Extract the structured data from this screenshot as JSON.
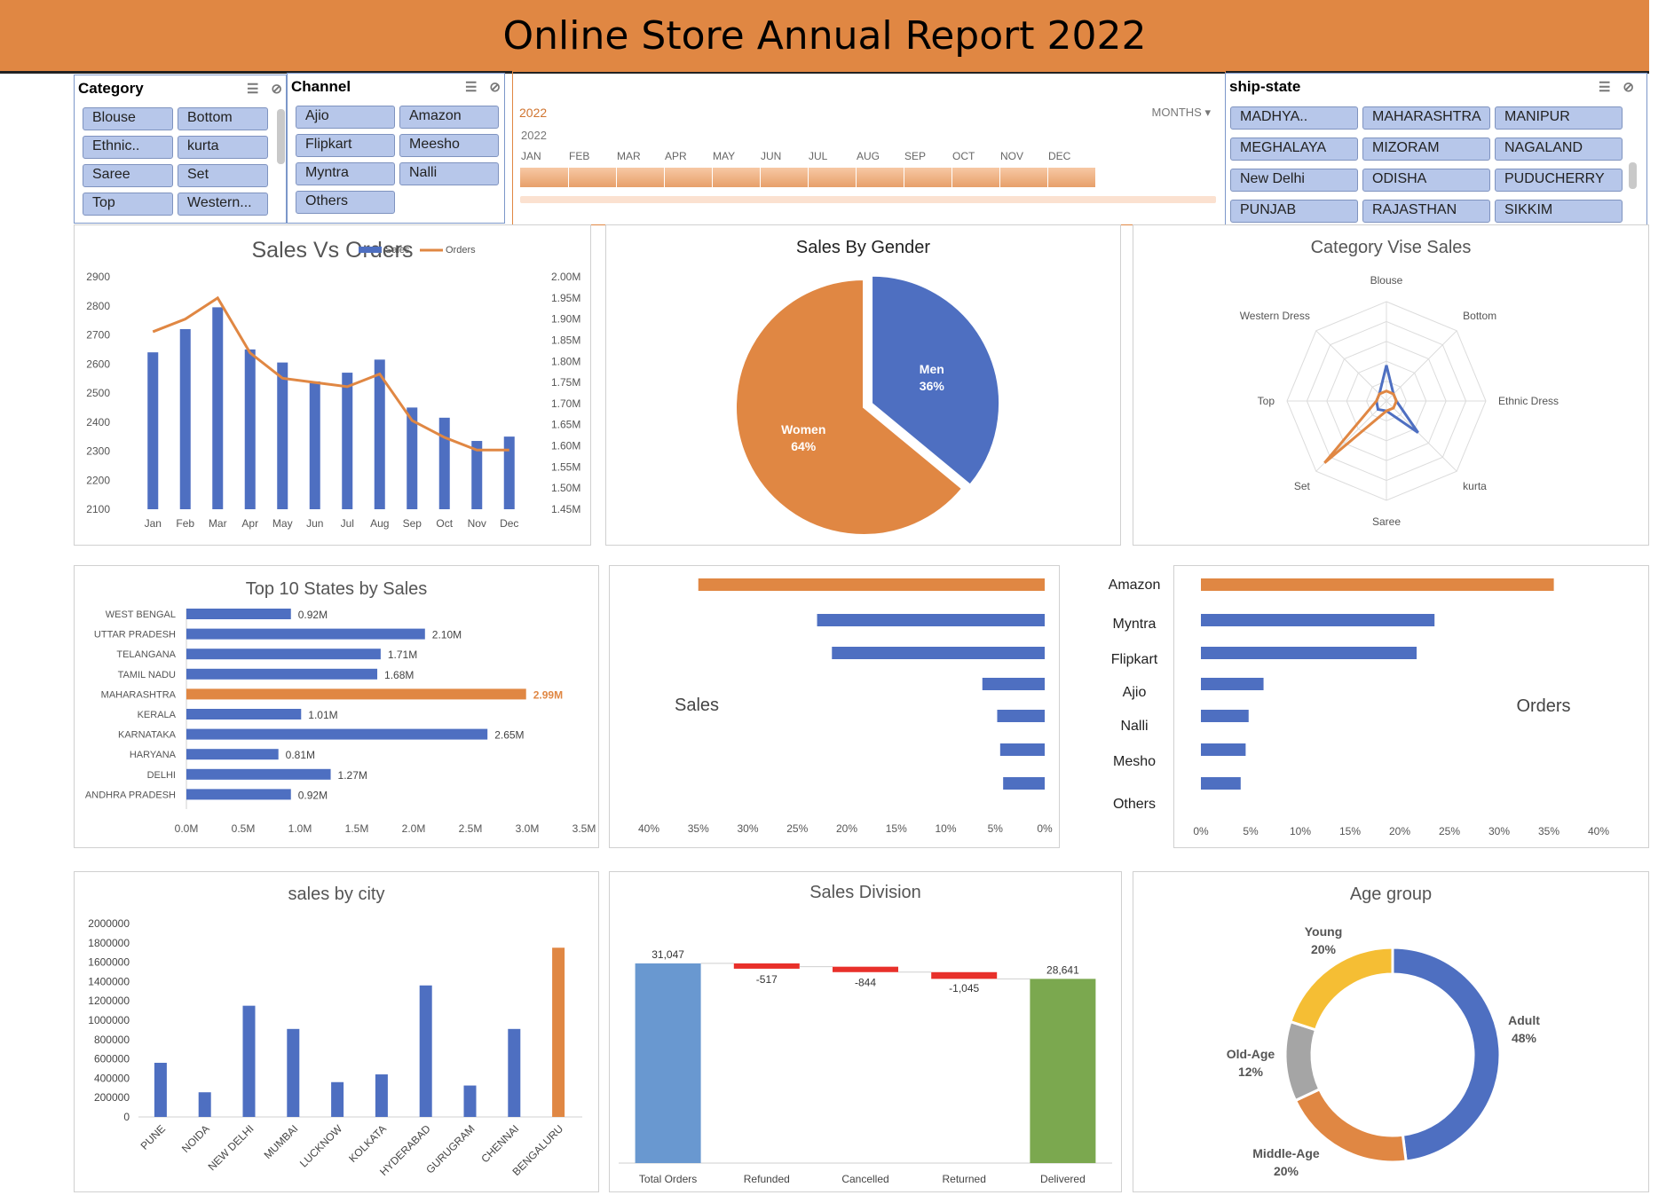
{
  "title": "Online Store Annual Report 2022",
  "slicers": {
    "category": {
      "label": "Category",
      "items": [
        "Blouse",
        "Bottom",
        "Ethnic..",
        "kurta",
        "Saree",
        "Set",
        "Top",
        "Western..."
      ]
    },
    "channel": {
      "label": "Channel",
      "items": [
        "Ajio",
        "Amazon",
        "Flipkart",
        "Meesho",
        "Myntra",
        "Nalli",
        "Others"
      ]
    },
    "ship_state": {
      "label": "ship-state",
      "items": [
        "MADHYA..",
        "MAHARASHTRA",
        "MANIPUR",
        "MEGHALAYA",
        "MIZORAM",
        "NAGALAND",
        "New Delhi",
        "ODISHA",
        "PUDUCHERRY",
        "PUNJAB",
        "RAJASTHAN",
        "SIKKIM"
      ]
    }
  },
  "timeline": {
    "period_label": "2022",
    "year": "2022",
    "level": "MONTHS",
    "months": [
      "JAN",
      "FEB",
      "MAR",
      "APR",
      "MAY",
      "JUN",
      "JUL",
      "AUG",
      "SEP",
      "OCT",
      "NOV",
      "DEC"
    ],
    "selected_fraction": 0.79
  },
  "colors": {
    "blue": "#4e6fc1",
    "orange": "#e08743",
    "gray": "#a5a5a5",
    "yellow": "#f5be34",
    "red": "#e8302a",
    "green": "#7ba84f",
    "lightblue": "#6998d0"
  },
  "chart_data": [
    {
      "id": "sales-vs-orders",
      "type": "bar",
      "title": "Sales Vs Orders",
      "categories": [
        "Jan",
        "Feb",
        "Mar",
        "Apr",
        "May",
        "Jun",
        "Jul",
        "Aug",
        "Sep",
        "Oct",
        "Nov",
        "Dec"
      ],
      "series": [
        {
          "name": "Sales",
          "type": "bar",
          "axis": "left",
          "values": [
            2640,
            2720,
            2795,
            2650,
            2605,
            2540,
            2570,
            2615,
            2450,
            2415,
            2335,
            2350
          ]
        },
        {
          "name": "Orders",
          "type": "line",
          "axis": "right",
          "values": [
            1.87,
            1.9,
            1.95,
            1.82,
            1.76,
            1.75,
            1.74,
            1.77,
            1.66,
            1.62,
            1.59,
            1.59
          ]
        }
      ],
      "ylim": [
        2100,
        2900
      ],
      "y_ticks": [
        "2900",
        "2800",
        "2700",
        "2600",
        "2500",
        "2400",
        "2300",
        "2200",
        "2100"
      ],
      "y2lim": [
        1.45,
        2.0
      ],
      "y2_ticks": [
        "2.00M",
        "1.95M",
        "1.90M",
        "1.85M",
        "1.80M",
        "1.75M",
        "1.70M",
        "1.65M",
        "1.60M",
        "1.55M",
        "1.50M",
        "1.45M"
      ],
      "legend": "top-right"
    },
    {
      "id": "sales-by-gender",
      "type": "pie",
      "title": "Sales By Gender",
      "slices": [
        {
          "label": "Men",
          "pct_label": "36%",
          "value": 36
        },
        {
          "label": "Women",
          "pct_label": "64%",
          "value": 64
        }
      ]
    },
    {
      "id": "category-vise-sales",
      "type": "radar",
      "title": "Category Vise Sales",
      "axes": [
        "Blouse",
        "Bottom",
        "Ethnic Dress",
        "kurta",
        "Saree",
        "Set",
        "Top",
        "Western Dress"
      ],
      "series": [
        {
          "values": [
            0.36,
            0.1,
            0.1,
            0.45,
            0.1,
            0.12,
            0.1,
            0.1
          ]
        },
        {
          "values": [
            0.1,
            0.1,
            0.1,
            0.1,
            0.1,
            0.88,
            0.1,
            0.1
          ]
        }
      ]
    },
    {
      "id": "top-10-states",
      "type": "bar",
      "orientation": "horizontal",
      "title": "Top 10 States by Sales",
      "categories": [
        "WEST BENGAL",
        "UTTAR PRADESH",
        "TELANGANA",
        "TAMIL NADU",
        "MAHARASHTRA",
        "KERALA",
        "KARNATAKA",
        "HARYANA",
        "DELHI",
        "ANDHRA PRADESH"
      ],
      "values": [
        0.92,
        2.1,
        1.71,
        1.68,
        2.99,
        1.01,
        2.65,
        0.81,
        1.27,
        0.92
      ],
      "value_labels": [
        "0.92M",
        "2.10M",
        "1.71M",
        "1.68M",
        "2.99M",
        "1.01M",
        "2.65M",
        "0.81M",
        "1.27M",
        "0.92M"
      ],
      "highlight": "MAHARASHTRA",
      "xlim": [
        0,
        3.5
      ],
      "x_ticks": [
        "0.0M",
        "0.5M",
        "1.0M",
        "1.5M",
        "2.0M",
        "2.5M",
        "3.0M",
        "3.5M"
      ]
    },
    {
      "id": "channel-sales-orders",
      "type": "bar",
      "orientation": "horizontal",
      "categories": [
        "Amazon",
        "Myntra",
        "Flipkart",
        "Ajio",
        "Nalli",
        "Mesho",
        "Others"
      ],
      "series": [
        {
          "name": "Sales",
          "values": [
            35,
            23,
            21.5,
            6.3,
            4.8,
            4.5,
            4.2
          ]
        },
        {
          "name": "Orders",
          "values": [
            35.5,
            23.5,
            21.7,
            6.3,
            4.8,
            4.5,
            4.0
          ]
        }
      ],
      "xlim": [
        0,
        40
      ],
      "x_ticks": [
        "0%",
        "5%",
        "10%",
        "15%",
        "20%",
        "25%",
        "30%",
        "35%",
        "40%"
      ],
      "left_x_ticks": [
        "40%",
        "35%",
        "30%",
        "25%",
        "20%",
        "15%",
        "10%",
        "5%",
        "0%"
      ]
    },
    {
      "id": "sales-by-city",
      "type": "bar",
      "title": "sales by city",
      "categories": [
        "PUNE",
        "NOIDA",
        "NEW DELHI",
        "MUMBAI",
        "LUCKNOW",
        "KOLKATA",
        "HYDERABAD",
        "GURUGRAM",
        "CHENNAI",
        "BENGALURU"
      ],
      "values": [
        560000,
        255000,
        1150000,
        910000,
        360000,
        440000,
        1360000,
        325000,
        910000,
        1750000
      ],
      "highlight": "BENGALURU",
      "ylim": [
        0,
        2000000
      ],
      "y_ticks": [
        "2000000",
        "1800000",
        "1600000",
        "1400000",
        "1200000",
        "1000000",
        "800000",
        "600000",
        "400000",
        "200000",
        "0"
      ]
    },
    {
      "id": "sales-division",
      "type": "waterfall",
      "title": "Sales Division",
      "categories": [
        "Total Orders",
        "Refunded",
        "Cancelled",
        "Returned",
        "Delivered"
      ],
      "values": [
        31047,
        -517,
        -844,
        -1045,
        28641
      ],
      "value_labels": [
        "31,047",
        "-517",
        "-844",
        "-1,045",
        "28,641"
      ]
    },
    {
      "id": "age-group",
      "type": "pie",
      "title": "Age group",
      "slices": [
        {
          "label": "Adult",
          "pct_label": "48%",
          "value": 48
        },
        {
          "label": "Middle-Age",
          "pct_label": "20%",
          "value": 20
        },
        {
          "label": "Old-Age",
          "pct_label": "12%",
          "value": 12
        },
        {
          "label": "Young",
          "pct_label": "20%",
          "value": 20
        }
      ]
    }
  ]
}
